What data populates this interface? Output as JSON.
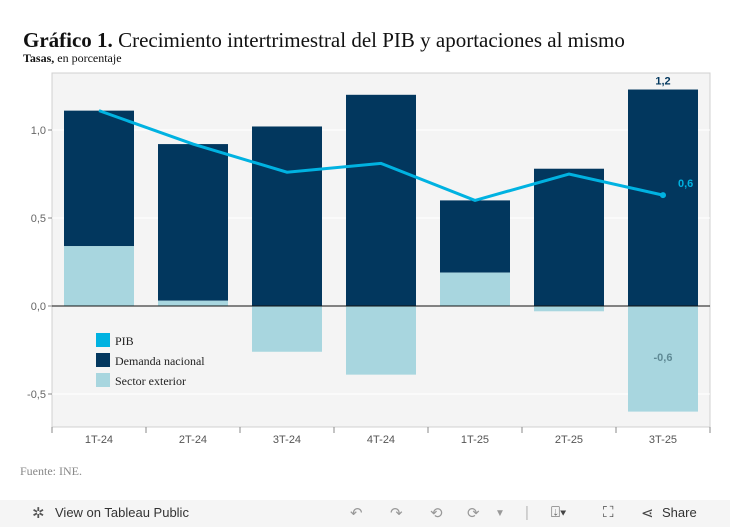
{
  "title_bold": "Gráfico 1.",
  "title_rest": "Crecimiento intertrimestral del PIB y aportaciones al mismo",
  "subtitle_bold": "Tasas,",
  "subtitle_rest": "en porcentaje",
  "source": "Fuente: INE.",
  "toolbar": {
    "view_label": "View on Tableau Public",
    "share_label": "Share"
  },
  "chart_data": {
    "type": "bar",
    "categories": [
      "1T-24",
      "2T-24",
      "3T-24",
      "4T-24",
      "1T-25",
      "2T-25",
      "3T-25"
    ],
    "series": [
      {
        "name": "Demanda nacional",
        "type": "stacked-bar",
        "color": "#02375e",
        "values": [
          0.77,
          0.89,
          1.02,
          1.2,
          0.41,
          0.78,
          1.23
        ]
      },
      {
        "name": "Sector exterior",
        "type": "stacked-bar",
        "color": "#a8d6df",
        "values": [
          0.34,
          0.03,
          -0.26,
          -0.39,
          0.19,
          -0.03,
          -0.6
        ]
      },
      {
        "name": "PIB",
        "type": "line",
        "color": "#00b2e1",
        "values": [
          1.11,
          0.92,
          0.76,
          0.81,
          0.6,
          0.75,
          0.63
        ]
      }
    ],
    "data_labels": [
      {
        "category": "3T-25",
        "series": "Demanda nacional",
        "text": "1,2"
      },
      {
        "category": "3T-25",
        "series": "PIB",
        "text": "0,6"
      },
      {
        "category": "3T-25",
        "series": "Sector exterior",
        "text": "-0,6"
      }
    ],
    "yticks": [
      "1,0",
      "0,5",
      "0,0",
      "-0,5"
    ],
    "ytick_values": [
      1.0,
      0.5,
      0.0,
      -0.5
    ],
    "ylim": [
      -0.69,
      1.32
    ],
    "grid": true,
    "legend_placement": "bottom-left inside"
  }
}
